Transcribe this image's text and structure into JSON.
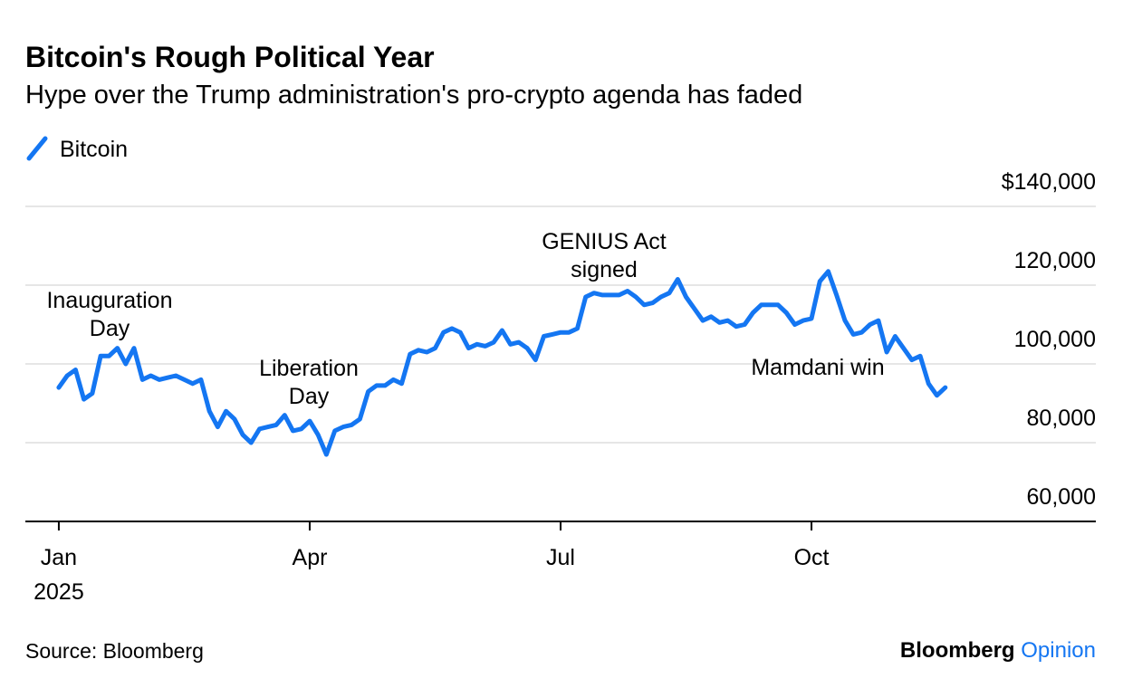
{
  "chart_data": {
    "type": "line",
    "title": "Bitcoin's Rough Political Year",
    "subtitle": "Hype over the Trump administration's pro-crypto agenda has faded",
    "source": "Source: Bloomberg",
    "brand": [
      "Bloomberg",
      "Opinion"
    ],
    "grid": true,
    "x": [
      0,
      0.1,
      0.2,
      0.3,
      0.4,
      0.5,
      0.6,
      0.7,
      0.8,
      0.9,
      1,
      1.1,
      1.2,
      1.3,
      1.4,
      1.5,
      1.6,
      1.7,
      1.8,
      1.9,
      2,
      2.1,
      2.2,
      2.3,
      2.4,
      2.5,
      2.6,
      2.7,
      2.8,
      2.9,
      3,
      3.1,
      3.2,
      3.3,
      3.4,
      3.5,
      3.6,
      3.7,
      3.8,
      3.9,
      4,
      4.1,
      4.2,
      4.3,
      4.4,
      4.5,
      4.6,
      4.7,
      4.8,
      4.9,
      5,
      5.1,
      5.2,
      5.3,
      5.4,
      5.5,
      5.6,
      5.7,
      5.8,
      5.9,
      6,
      6.1,
      6.2,
      6.3,
      6.4,
      6.5,
      6.6,
      6.7,
      6.8,
      6.9,
      7,
      7.1,
      7.2,
      7.3,
      7.4,
      7.5,
      7.6,
      7.7,
      7.8,
      7.9,
      8,
      8.1,
      8.2,
      8.3,
      8.4,
      8.5,
      8.6,
      8.7,
      8.8,
      8.9,
      9,
      9.1,
      9.2,
      9.3,
      9.4,
      9.5,
      9.6,
      9.7,
      9.8,
      9.9,
      10,
      10.1,
      10.2,
      10.3,
      10.4,
      10.5,
      10.6
    ],
    "series": [
      {
        "name": "Bitcoin",
        "color": "#1476f2",
        "values": [
          94000,
          97000,
          98500,
          91000,
          92500,
          102000,
          102000,
          104000,
          100000,
          104000,
          96000,
          97000,
          96000,
          96500,
          97000,
          96000,
          95000,
          96000,
          88000,
          84000,
          88000,
          86000,
          82000,
          80000,
          83500,
          84000,
          84500,
          87000,
          83000,
          83500,
          85500,
          82000,
          77000,
          83000,
          84000,
          84500,
          86000,
          93000,
          94500,
          94500,
          96000,
          95000,
          102500,
          103500,
          103000,
          104000,
          108000,
          109000,
          108000,
          104000,
          105000,
          104500,
          105500,
          108500,
          105000,
          105500,
          104000,
          101000,
          107000,
          107500,
          108000,
          108000,
          109000,
          117000,
          118000,
          117500,
          117500,
          117500,
          118500,
          117000,
          115000,
          115500,
          117000,
          118000,
          121500,
          117000,
          114000,
          111000,
          112000,
          110500,
          111000,
          109500,
          110000,
          113000,
          115000,
          115000,
          115000,
          113000,
          110000,
          111000,
          111500,
          121000,
          123500,
          117500,
          111000,
          107500,
          108000,
          110000,
          111000,
          103000,
          107000,
          104000,
          101000,
          102000,
          95000,
          92000,
          94000
        ]
      }
    ],
    "xlim": [
      -0.4,
      12.4
    ],
    "xticks": [
      {
        "value": 0,
        "label": "Jan"
      },
      {
        "value": 3,
        "label": "Apr"
      },
      {
        "value": 6,
        "label": "Jul"
      },
      {
        "value": 9,
        "label": "Oct"
      }
    ],
    "x_year": "2025",
    "ylim": [
      60000,
      140000
    ],
    "yticks": [
      {
        "value": 60000,
        "label": "60,000"
      },
      {
        "value": 80000,
        "label": "80,000"
      },
      {
        "value": 100000,
        "label": "100,000"
      },
      {
        "value": 120000,
        "label": "120,000"
      },
      {
        "value": 140000,
        "label": "$140,000"
      }
    ],
    "annotations": [
      {
        "lines": [
          "Inauguration",
          "Day"
        ]
      },
      {
        "lines": [
          "Liberation",
          "Day"
        ]
      },
      {
        "lines": [
          "GENIUS Act",
          "signed"
        ]
      },
      {
        "lines": [
          "Mamdani win"
        ]
      }
    ]
  }
}
